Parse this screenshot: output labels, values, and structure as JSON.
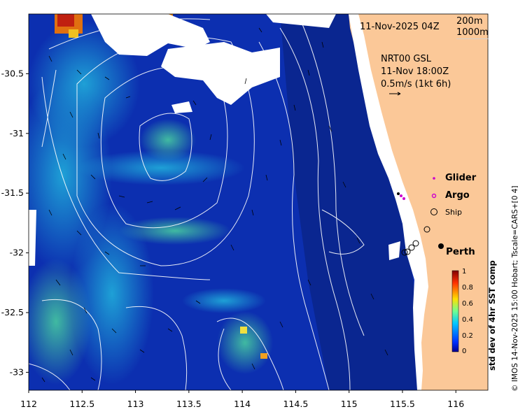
{
  "map": {
    "date_label": "11-Nov-2025 04Z",
    "isobath_legend": [
      "200m",
      "1000m"
    ],
    "product_lines": [
      "NRT00 GSL",
      "11-Nov 18:00Z",
      "0.5m/s (1kt 6h)"
    ],
    "x_ticks": [
      {
        "value": 112,
        "label": "112"
      },
      {
        "value": 112.5,
        "label": "112.5"
      },
      {
        "value": 113,
        "label": "113"
      },
      {
        "value": 113.5,
        "label": "113.5"
      },
      {
        "value": 114,
        "label": "114"
      },
      {
        "value": 114.5,
        "label": "114.5"
      },
      {
        "value": 115,
        "label": "115"
      },
      {
        "value": 115.5,
        "label": "115.5"
      },
      {
        "value": 116,
        "label": "116"
      }
    ],
    "y_ticks": [
      {
        "value": -30.5,
        "label": "-30.5"
      },
      {
        "value": -31,
        "label": "-31"
      },
      {
        "value": -31.5,
        "label": "-31.5"
      },
      {
        "value": -32,
        "label": "-32"
      },
      {
        "value": -32.5,
        "label": "-32.5"
      },
      {
        "value": -33,
        "label": "-33"
      }
    ],
    "lon_range": [
      112,
      116.3
    ],
    "lat_range": [
      -33.15,
      -30.0
    ],
    "legend": {
      "glider": "Glider",
      "argo": "Argo",
      "ship": "Ship"
    },
    "city": {
      "name": "Perth",
      "lon": 115.86,
      "lat": -31.95
    },
    "colorbar": {
      "label": "std dev of 4hr SST comp",
      "ticks": [
        "1",
        "0.8",
        "0.6",
        "0.4",
        "0.2",
        "0"
      ],
      "range": [
        0,
        1
      ]
    },
    "credit": "© IMOS 14-Nov-2025 15:00 Hobart; Tscale=CARS+[0 4]",
    "colors": {
      "land": "#fbc898",
      "ocean_low": "#0a2a9e",
      "high": "#e04010",
      "marker_glider": "#cc00cc"
    }
  }
}
